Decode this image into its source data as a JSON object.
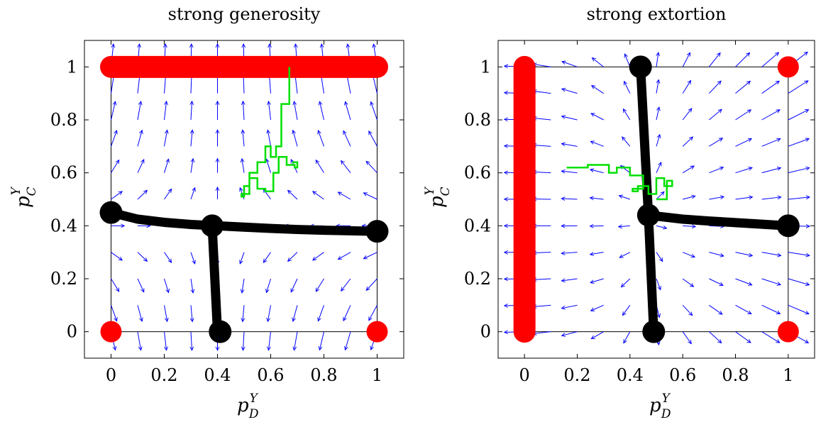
{
  "chart_data": [
    {
      "type": "line",
      "title": "strong generosity",
      "xlabel": "p_D^Y",
      "ylabel": "p_C^Y",
      "xlabel_main": "p",
      "xlabel_sup": "Y",
      "xlabel_sub": "D",
      "ylabel_main": "p",
      "ylabel_sup": "Y",
      "ylabel_sub": "C",
      "xlim": [
        -0.1,
        1.1
      ],
      "ylim": [
        -0.1,
        1.1
      ],
      "xticks": [
        0,
        0.2,
        0.4,
        0.6,
        0.8,
        1
      ],
      "yticks": [
        0,
        0.2,
        0.4,
        0.6,
        0.8,
        1
      ],
      "xtick_labels": [
        "0",
        "0.2",
        "0.4",
        "0.6",
        "0.8",
        "1"
      ],
      "ytick_labels": [
        "0",
        "0.2",
        "0.4",
        "0.6",
        "0.8",
        "1"
      ],
      "grid": false,
      "colors": {
        "red": "#ff0000",
        "black": "#000000",
        "green": "#00e000",
        "vector": "#0000ff"
      },
      "red_lines": [
        [
          [
            0,
            1
          ],
          [
            1,
            1
          ]
        ]
      ],
      "red_points": [
        [
          0,
          0
        ],
        [
          1,
          0
        ]
      ],
      "black_lines": [
        [
          [
            0,
            0.45
          ],
          [
            0.1,
            0.425
          ],
          [
            0.2,
            0.413
          ],
          [
            0.3,
            0.405
          ],
          [
            0.4,
            0.4
          ],
          [
            0.5,
            0.395
          ],
          [
            0.6,
            0.39
          ],
          [
            0.7,
            0.386
          ],
          [
            0.8,
            0.383
          ],
          [
            0.9,
            0.381
          ],
          [
            1,
            0.379
          ]
        ],
        [
          [
            0.38,
            0.4
          ],
          [
            0.4,
            0
          ]
        ]
      ],
      "black_points": [
        [
          0,
          0.45
        ],
        [
          0.38,
          0.4
        ],
        [
          1,
          0.379
        ],
        [
          0.41,
          0
        ]
      ],
      "green_path": [
        [
          0.67,
          1
        ],
        [
          0.67,
          0.86
        ],
        [
          0.64,
          0.86
        ],
        [
          0.64,
          0.7
        ],
        [
          0.62,
          0.7
        ],
        [
          0.62,
          0.66
        ],
        [
          0.6,
          0.66
        ],
        [
          0.6,
          0.7
        ],
        [
          0.58,
          0.7
        ],
        [
          0.58,
          0.64
        ],
        [
          0.55,
          0.64
        ],
        [
          0.55,
          0.6
        ],
        [
          0.52,
          0.6
        ],
        [
          0.52,
          0.52
        ],
        [
          0.49,
          0.52
        ],
        [
          0.49,
          0.51
        ],
        [
          0.5,
          0.51
        ],
        [
          0.5,
          0.55
        ],
        [
          0.52,
          0.55
        ],
        [
          0.52,
          0.58
        ],
        [
          0.55,
          0.58
        ],
        [
          0.55,
          0.54
        ],
        [
          0.58,
          0.54
        ],
        [
          0.58,
          0.53
        ],
        [
          0.61,
          0.53
        ],
        [
          0.61,
          0.6
        ],
        [
          0.63,
          0.6
        ],
        [
          0.63,
          0.66
        ],
        [
          0.66,
          0.66
        ],
        [
          0.66,
          0.63
        ],
        [
          0.69,
          0.63
        ],
        [
          0.69,
          0.62
        ],
        [
          0.7,
          0.62
        ],
        [
          0.7,
          0.64
        ],
        [
          0.68,
          0.64
        ]
      ],
      "vector_field": {
        "y_star": 0.4,
        "x_star": 0.4
      }
    },
    {
      "type": "line",
      "title": "strong extortion",
      "xlabel": "p_D^Y",
      "ylabel": "p_C^Y",
      "xlabel_main": "p",
      "xlabel_sup": "Y",
      "xlabel_sub": "D",
      "ylabel_main": "p",
      "ylabel_sup": "Y",
      "ylabel_sub": "C",
      "xlim": [
        -0.1,
        1.1
      ],
      "ylim": [
        -0.1,
        1.1
      ],
      "xticks": [
        0,
        0.2,
        0.4,
        0.6,
        0.8,
        1
      ],
      "yticks": [
        0,
        0.2,
        0.4,
        0.6,
        0.8,
        1
      ],
      "xtick_labels": [
        "0",
        "0.2",
        "0.4",
        "0.6",
        "0.8",
        "1"
      ],
      "ytick_labels": [
        "0",
        "0.2",
        "0.4",
        "0.6",
        "0.8",
        "1"
      ],
      "grid": false,
      "colors": {
        "red": "#ff0000",
        "black": "#000000",
        "green": "#00e000",
        "vector": "#0000ff"
      },
      "red_lines": [
        [
          [
            0,
            0
          ],
          [
            0,
            1
          ]
        ]
      ],
      "red_points": [
        [
          1,
          1
        ],
        [
          1,
          0
        ]
      ],
      "black_lines": [
        [
          [
            0.44,
            1
          ],
          [
            0.47,
            0.44
          ],
          [
            0.49,
            0
          ]
        ],
        [
          [
            0.47,
            0.44
          ],
          [
            0.6,
            0.425
          ],
          [
            0.7,
            0.418
          ],
          [
            0.8,
            0.412
          ],
          [
            0.9,
            0.406
          ],
          [
            1,
            0.4
          ]
        ]
      ],
      "black_points": [
        [
          0.44,
          1
        ],
        [
          0.47,
          0.44
        ],
        [
          1,
          0.4
        ],
        [
          0.49,
          0
        ]
      ],
      "green_path": [
        [
          0.16,
          0.62
        ],
        [
          0.24,
          0.62
        ],
        [
          0.24,
          0.63
        ],
        [
          0.32,
          0.63
        ],
        [
          0.32,
          0.6
        ],
        [
          0.35,
          0.6
        ],
        [
          0.35,
          0.62
        ],
        [
          0.4,
          0.62
        ],
        [
          0.4,
          0.59
        ],
        [
          0.45,
          0.59
        ],
        [
          0.45,
          0.54
        ],
        [
          0.41,
          0.54
        ],
        [
          0.41,
          0.53
        ],
        [
          0.43,
          0.53
        ],
        [
          0.43,
          0.55
        ],
        [
          0.47,
          0.55
        ],
        [
          0.47,
          0.52
        ],
        [
          0.5,
          0.52
        ],
        [
          0.5,
          0.58
        ],
        [
          0.53,
          0.58
        ],
        [
          0.53,
          0.55
        ],
        [
          0.56,
          0.55
        ],
        [
          0.56,
          0.57
        ],
        [
          0.54,
          0.57
        ],
        [
          0.54,
          0.5
        ],
        [
          0.5,
          0.5
        ]
      ],
      "vector_field": {
        "y_star": 0.42,
        "x_star": 0.47
      }
    }
  ]
}
